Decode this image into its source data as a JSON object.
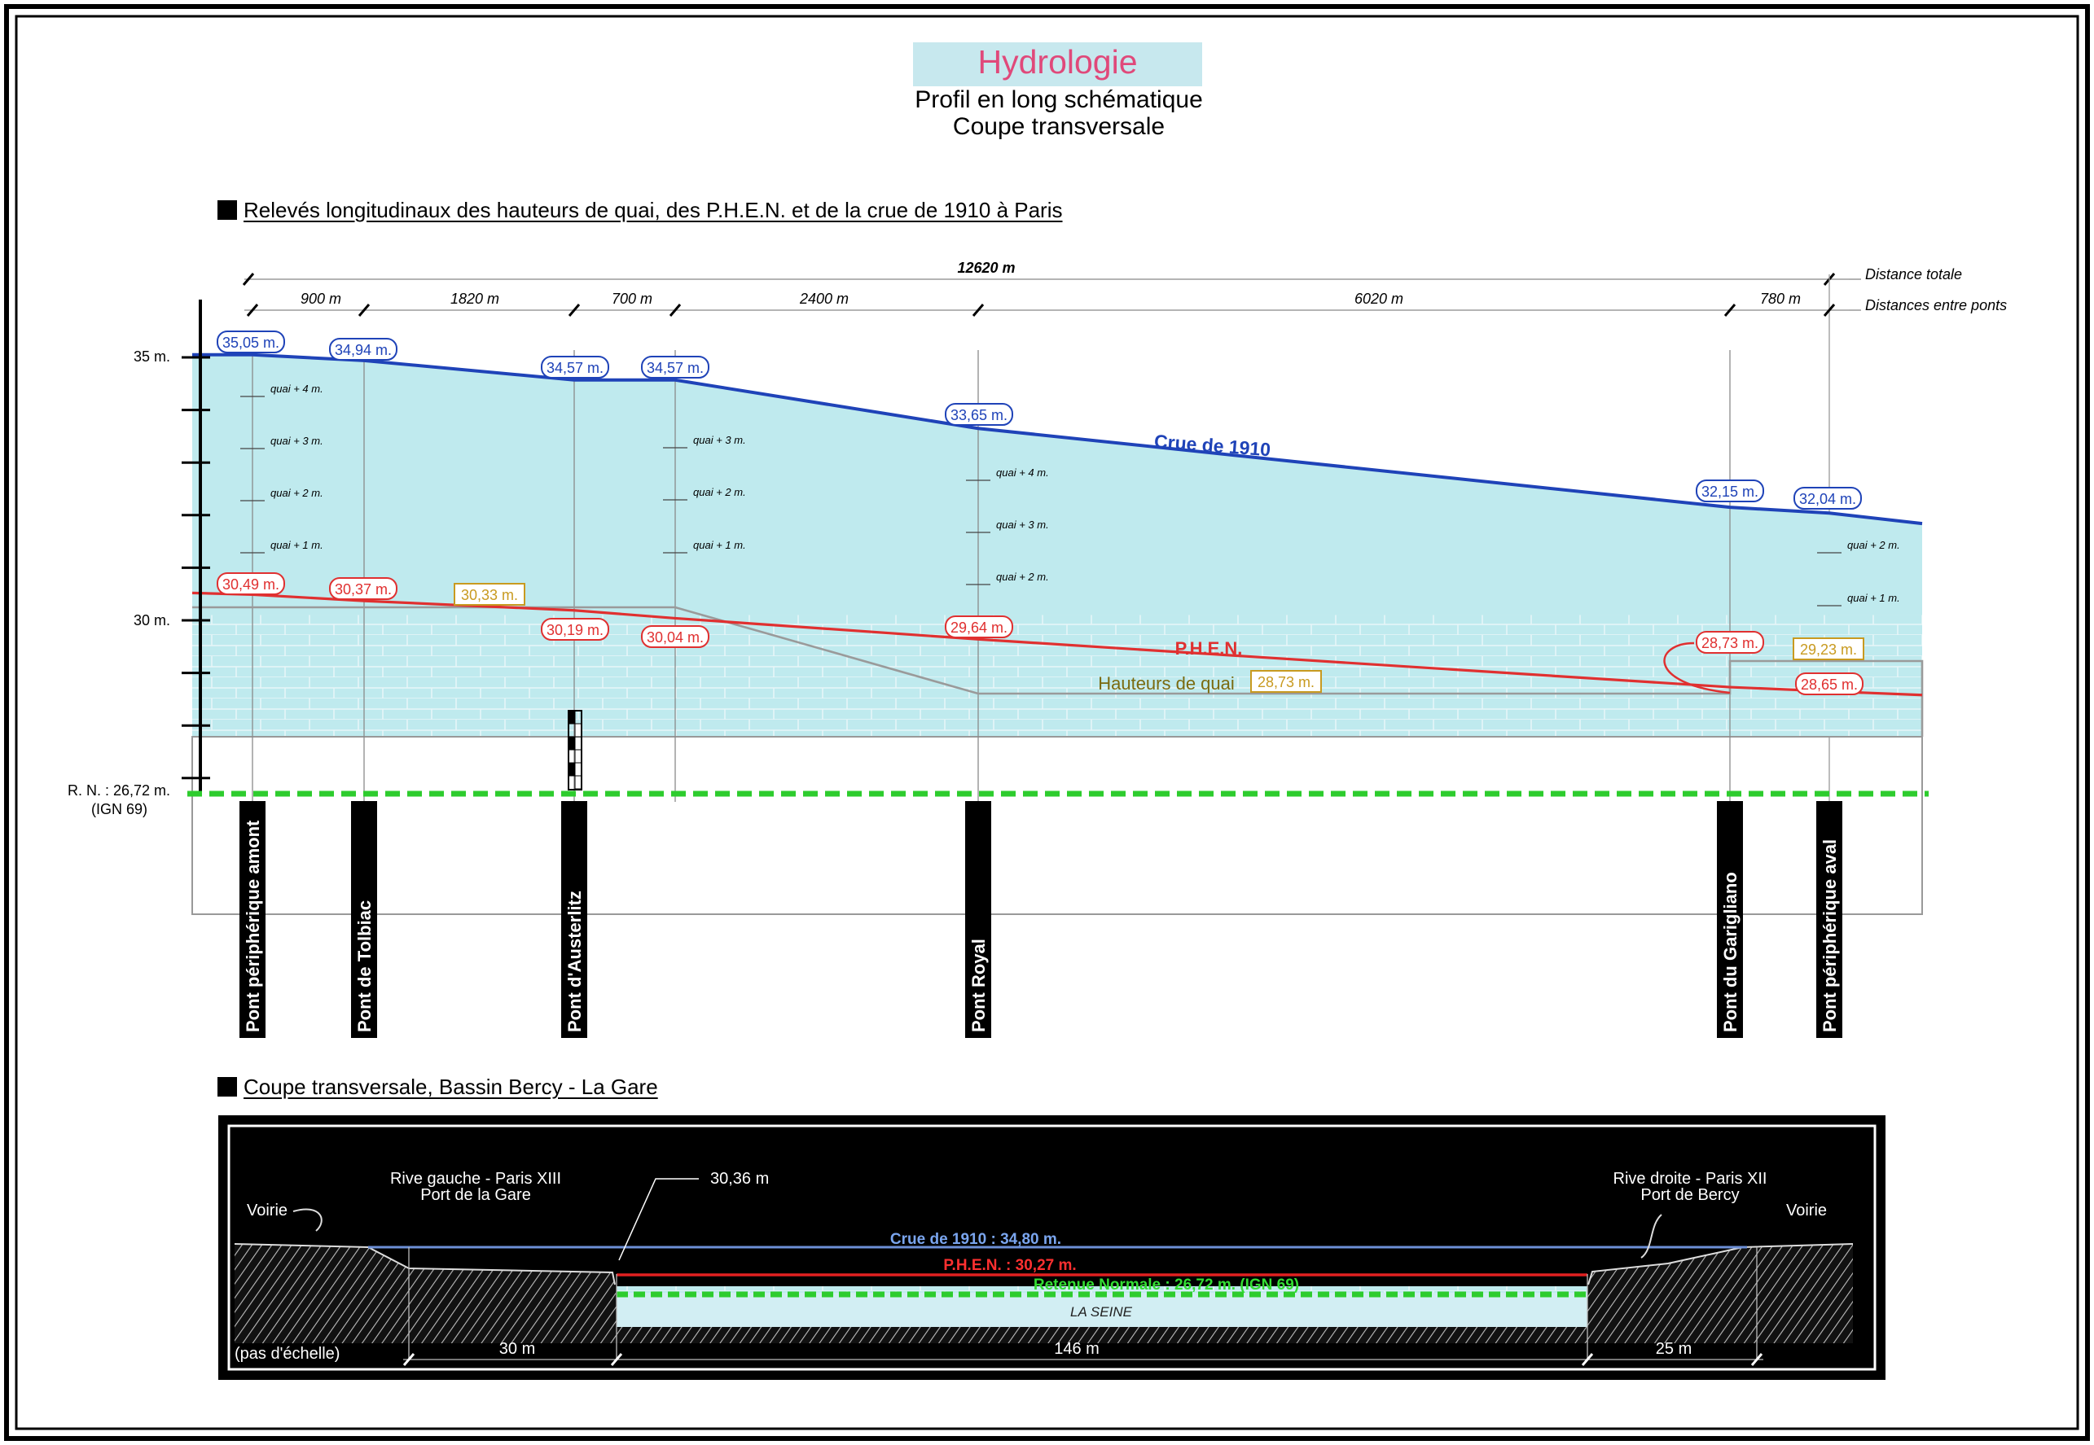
{
  "header": {
    "title": "Hydrologie",
    "subtitle1": "Profil en long schématique",
    "subtitle2": "Coupe transversale"
  },
  "section1": {
    "title": "Relevés longitudinaux des hauteurs de quai, des P.H.E.N. et de la crue de 1910 à Paris",
    "total_distance": "12620 m",
    "total_distance_label": "Distance totale",
    "between_label": "Distances entre ponts",
    "distances": [
      "900 m",
      "1820 m",
      "700 m",
      "2400 m",
      "6020 m",
      "780 m"
    ],
    "y_labels": [
      "35 m.",
      "30 m.",
      "R. N. : 26,72 m.",
      "(IGN 69)"
    ],
    "bridges": [
      "Pont périphérique amont",
      "Pont de Tolbiac",
      "Pont d'Austerlitz",
      "Pont Royal",
      "Pont du Garigliano",
      "Pont périphérique aval"
    ],
    "crue_values": [
      "35,05 m.",
      "34,94 m.",
      "34,57 m.",
      "34,57 m.",
      "33,65 m.",
      "32,15 m.",
      "32,04 m."
    ],
    "phen_values": [
      "30,49 m.",
      "30,37 m.",
      "30,19 m.",
      "30,04 m.",
      "29,64 m.",
      "28,73 m.",
      "28,65 m."
    ],
    "quai_values": [
      "30,33 m.",
      "28,73 m.",
      "29,23 m."
    ],
    "line_labels": {
      "crue": "Crue de 1910",
      "phen": "P.H.E.N.",
      "quai": "Hauteurs de quai"
    },
    "quai_marks": [
      "quai + 4 m.",
      "quai + 3 m.",
      "quai + 2 m.",
      "quai + 1 m."
    ],
    "colors": {
      "crue": "#1f43b8",
      "phen": "#e03030",
      "quai": "#9a9a9a",
      "water": "#bfeaee",
      "rn": "#2ecc2e",
      "box_quai": "#c89a20"
    }
  },
  "section2": {
    "title": "Coupe transversale, Bassin Bercy - La Gare",
    "left_bank": "Rive gauche - Paris XIII",
    "left_port": "Port de la Gare",
    "right_bank": "Rive droite - Paris XII",
    "right_port": "Port de Bercy",
    "voirie": "Voirie",
    "level_3036": "30,36 m",
    "crue": "Crue de 1910 : 34,80 m.",
    "phen": "P.H.E.N. : 30,27 m.",
    "retenue": "Retenue Normale : 26,72 m. (IGN 69)",
    "river": "LA SEINE",
    "scale_note": "(pas d'échelle)",
    "widths": [
      "30 m",
      "146 m",
      "25 m"
    ]
  }
}
